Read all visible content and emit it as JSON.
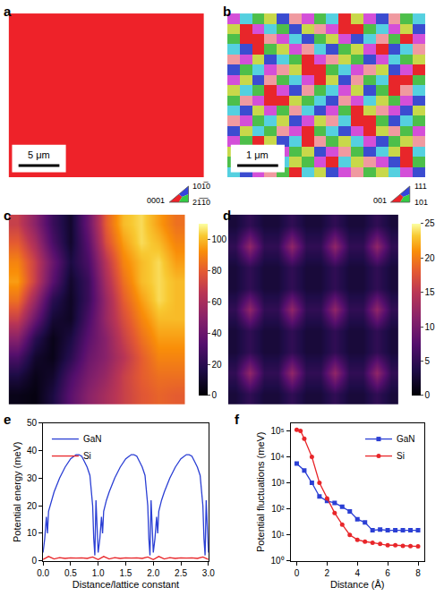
{
  "chart_data": [
    {
      "type": "orientation_map",
      "title": "a",
      "tick_labels": false,
      "cells": [
        [
          0
        ]
      ],
      "colors": [
        "#ee2229"
      ],
      "scale_bar": "5 μm",
      "key": {
        "labels": [
          "0001",
          "101̅0",
          "21̅1̅0"
        ],
        "colors": [
          "#ee2229",
          "#3344dd",
          "#33cc44"
        ]
      }
    },
    {
      "type": "orientation_map",
      "title": "b",
      "tick_labels": false,
      "colors": [
        "#e8262a",
        "#3b4cd0",
        "#4dbf4a",
        "#d44fd8",
        "#55d0e0",
        "#c8d84a",
        "#f09aa0"
      ],
      "cells": [
        [
          3,
          4,
          2,
          5,
          1,
          6,
          3,
          2,
          4,
          0,
          5,
          3,
          1,
          6,
          2,
          4
        ],
        [
          5,
          0,
          3,
          4,
          2,
          1,
          5,
          6,
          3,
          0,
          0,
          2,
          4,
          3,
          5,
          1
        ],
        [
          2,
          0,
          0,
          6,
          3,
          4,
          1,
          2,
          5,
          3,
          1,
          4,
          6,
          2,
          0,
          3
        ],
        [
          4,
          1,
          0,
          2,
          5,
          3,
          6,
          4,
          1,
          2,
          5,
          3,
          0,
          1,
          4,
          6
        ],
        [
          6,
          3,
          5,
          1,
          4,
          2,
          0,
          3,
          6,
          5,
          2,
          1,
          3,
          4,
          2,
          5
        ],
        [
          1,
          2,
          4,
          3,
          6,
          5,
          0,
          0,
          2,
          4,
          3,
          6,
          5,
          1,
          3,
          0
        ],
        [
          3,
          5,
          1,
          6,
          2,
          4,
          3,
          0,
          5,
          1,
          6,
          2,
          4,
          0,
          0,
          2
        ],
        [
          5,
          4,
          2,
          0,
          3,
          1,
          6,
          2,
          4,
          3,
          5,
          1,
          2,
          0,
          6,
          4
        ],
        [
          2,
          6,
          3,
          0,
          0,
          5,
          2,
          4,
          1,
          6,
          3,
          4,
          5,
          2,
          3,
          1
        ],
        [
          4,
          1,
          5,
          3,
          2,
          6,
          4,
          1,
          3,
          2,
          0,
          5,
          6,
          3,
          1,
          5
        ],
        [
          6,
          3,
          2,
          4,
          5,
          1,
          3,
          5,
          6,
          4,
          0,
          0,
          2,
          1,
          4,
          2
        ],
        [
          1,
          5,
          4,
          2,
          6,
          3,
          0,
          2,
          4,
          1,
          3,
          0,
          5,
          6,
          2,
          3
        ],
        [
          3,
          2,
          0,
          5,
          1,
          4,
          0,
          6,
          2,
          5,
          4,
          3,
          1,
          2,
          5,
          6
        ],
        [
          5,
          4,
          0,
          0,
          3,
          2,
          5,
          1,
          3,
          6,
          2,
          1,
          4,
          5,
          0,
          4
        ],
        [
          2,
          6,
          1,
          3,
          4,
          5,
          2,
          3,
          0,
          4,
          5,
          6,
          3,
          1,
          0,
          2
        ],
        [
          4,
          1,
          3,
          6,
          2,
          0,
          4,
          5,
          1,
          3,
          6,
          2,
          5,
          4,
          3,
          1
        ]
      ],
      "scale_bar": "1 μm",
      "key": {
        "labels": [
          "001",
          "111",
          "101"
        ],
        "colors": [
          "#ee2229",
          "#3344dd",
          "#33cc44"
        ]
      }
    },
    {
      "type": "heatmap",
      "title": "c",
      "tick_labels": false,
      "cells": [
        [
          70,
          50,
          25,
          10,
          40,
          80,
          100,
          105,
          95,
          85
        ],
        [
          80,
          60,
          30,
          10,
          35,
          75,
          95,
          105,
          100,
          90
        ],
        [
          90,
          70,
          40,
          15,
          30,
          65,
          90,
          100,
          105,
          95
        ],
        [
          95,
          70,
          35,
          10,
          25,
          60,
          85,
          100,
          105,
          100
        ],
        [
          85,
          55,
          20,
          8,
          25,
          55,
          80,
          95,
          105,
          100
        ],
        [
          70,
          40,
          12,
          8,
          30,
          55,
          75,
          90,
          100,
          100
        ],
        [
          50,
          20,
          5,
          15,
          35,
          50,
          70,
          85,
          95,
          95
        ],
        [
          30,
          10,
          5,
          20,
          40,
          50,
          65,
          80,
          90,
          90
        ],
        [
          15,
          5,
          10,
          30,
          45,
          55,
          70,
          80,
          85,
          85
        ],
        [
          5,
          3,
          15,
          35,
          50,
          60,
          70,
          78,
          82,
          80
        ]
      ],
      "colorbar": {
        "range": [
          0,
          110
        ],
        "ticks": [
          0,
          20,
          40,
          60,
          80,
          100
        ]
      }
    },
    {
      "type": "heatmap",
      "title": "d",
      "tick_labels": false,
      "cells": [
        [
          3,
          5,
          3,
          3,
          5,
          3,
          3,
          5,
          3,
          3,
          5,
          3
        ],
        [
          5,
          12,
          5,
          5,
          12,
          5,
          5,
          12,
          5,
          5,
          12,
          5
        ],
        [
          3,
          5,
          3,
          3,
          5,
          3,
          3,
          5,
          3,
          3,
          5,
          3
        ],
        [
          3,
          5,
          3,
          3,
          5,
          3,
          3,
          5,
          3,
          3,
          5,
          3
        ],
        [
          5,
          12,
          5,
          5,
          12,
          5,
          5,
          12,
          5,
          5,
          12,
          5
        ],
        [
          3,
          5,
          3,
          3,
          5,
          3,
          3,
          5,
          3,
          3,
          5,
          3
        ],
        [
          3,
          5,
          3,
          3,
          5,
          3,
          3,
          5,
          3,
          3,
          5,
          3
        ],
        [
          5,
          12,
          5,
          5,
          12,
          5,
          5,
          12,
          5,
          5,
          12,
          5
        ],
        [
          3,
          5,
          3,
          3,
          5,
          3,
          3,
          5,
          3,
          3,
          5,
          3
        ]
      ],
      "colorbar": {
        "range": [
          0,
          25
        ],
        "ticks": [
          0,
          5,
          10,
          15,
          20,
          25
        ]
      }
    },
    {
      "type": "line",
      "title": "e",
      "x_label": "Distance/lattice constant",
      "y_label": "Potential energy (meV)",
      "xlim": [
        0,
        3
      ],
      "xticks": [
        {
          "value": 0,
          "label": "0.0"
        },
        0.5,
        {
          "value": 1,
          "label": "1.0"
        },
        1.5,
        {
          "value": 2,
          "label": "2.0"
        },
        2.5,
        {
          "value": 3,
          "label": "3.0"
        }
      ],
      "ylim": [
        0,
        50
      ],
      "yticks": [
        0,
        10,
        20,
        30,
        40,
        50
      ],
      "grid": false,
      "legend": "top left",
      "series": [
        {
          "name": "GaN",
          "color": "#2b3fd4",
          "x": [
            0,
            0.03,
            0.06,
            0.08,
            0.1,
            0.15,
            0.2,
            0.3,
            0.4,
            0.5,
            0.6,
            0.65,
            0.7,
            0.75,
            0.8,
            0.85,
            0.88,
            0.9,
            0.92,
            0.94,
            0.96,
            0.98,
            1,
            1.03,
            1.06,
            1.08,
            1.1,
            1.15,
            1.2,
            1.3,
            1.4,
            1.5,
            1.6,
            1.65,
            1.7,
            1.75,
            1.8,
            1.85,
            1.88,
            1.9,
            1.92,
            1.94,
            1.96,
            1.98,
            2,
            2.03,
            2.06,
            2.08,
            2.1,
            2.15,
            2.2,
            2.3,
            2.4,
            2.5,
            2.6,
            2.65,
            2.7,
            2.75,
            2.8,
            2.85,
            2.88,
            2.9,
            2.92,
            2.94,
            2.96,
            2.98,
            3
          ],
          "values": [
            3,
            8,
            16,
            10,
            18,
            22,
            25,
            30,
            34,
            37,
            38.5,
            38.5,
            38,
            36,
            34,
            31,
            25,
            20,
            8,
            2,
            22,
            10,
            3,
            8,
            16,
            10,
            18,
            22,
            25,
            30,
            34,
            37,
            38.5,
            38.5,
            38,
            36,
            34,
            31,
            25,
            20,
            8,
            2,
            22,
            10,
            3,
            8,
            16,
            10,
            18,
            22,
            25,
            30,
            34,
            37,
            38.5,
            38.5,
            38,
            36,
            34,
            31,
            25,
            20,
            8,
            2,
            22,
            10,
            3
          ]
        },
        {
          "name": "Si",
          "color": "#e8262a",
          "x": [
            0,
            0.1,
            0.2,
            0.3,
            0.4,
            0.5,
            0.6,
            0.7,
            0.8,
            0.9,
            1,
            1.1,
            1.2,
            1.3,
            1.4,
            1.5,
            1.6,
            1.7,
            1.8,
            1.9,
            2,
            2.1,
            2.2,
            2.3,
            2.4,
            2.5,
            2.6,
            2.7,
            2.8,
            2.9,
            3
          ],
          "values": [
            0.5,
            1.6,
            0.7,
            1.2,
            0.9,
            1.1,
            1,
            1.1,
            0.9,
            1.4,
            0.5,
            1.6,
            0.7,
            1.2,
            0.9,
            1.1,
            1,
            1.1,
            0.9,
            1.4,
            0.5,
            1.6,
            0.7,
            1.2,
            0.9,
            1.1,
            1,
            1.1,
            0.9,
            1.4,
            0.5
          ]
        }
      ]
    },
    {
      "type": "line",
      "title": "f",
      "x_label": "Distance (Å)",
      "y_label": "Potential fluctuations (meV)",
      "log": "y",
      "xlim": [
        -0.4,
        8.4
      ],
      "xticks": [
        0,
        2,
        4,
        6,
        8
      ],
      "ylim": [
        1,
        200000
      ],
      "yticks": [
        {
          "value": 1,
          "label": "10⁰"
        },
        {
          "value": 10,
          "label": "10¹"
        },
        {
          "value": 100,
          "label": "10²"
        },
        {
          "value": 1000,
          "label": "10³"
        },
        {
          "value": 10000,
          "label": "10⁴"
        },
        {
          "value": 100000,
          "label": "10⁵"
        }
      ],
      "grid": false,
      "legend": "top right",
      "series": [
        {
          "name": "GaN",
          "color": "#2b3fd4",
          "marker": "square",
          "x": [
            0,
            0.5,
            1,
            1.5,
            2,
            2.5,
            3,
            3.5,
            4,
            4.5,
            5,
            5.5,
            6,
            6.5,
            7,
            7.5,
            8
          ],
          "values": [
            5500,
            3000,
            1000,
            300,
            200,
            170,
            120,
            80,
            40,
            30,
            15,
            16,
            15,
            15,
            15,
            15,
            15
          ]
        },
        {
          "name": "Si",
          "color": "#e8262a",
          "marker": "circle",
          "x": [
            0,
            0.25,
            0.5,
            1,
            1.5,
            2,
            2.5,
            3,
            3.5,
            4,
            4.5,
            5,
            5.5,
            6,
            6.5,
            7,
            7.5,
            8
          ],
          "values": [
            110000,
            100000,
            50000,
            10000,
            1000,
            250,
            70,
            25,
            10,
            6.5,
            5.5,
            5,
            4.5,
            4,
            4,
            3.8,
            3.7,
            3.6
          ]
        }
      ]
    }
  ]
}
